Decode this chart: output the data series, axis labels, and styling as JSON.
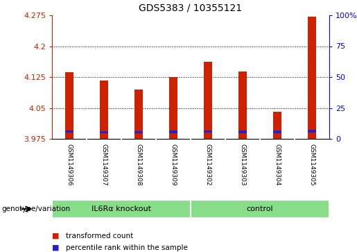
{
  "title": "GDS5383 / 10355121",
  "samples": [
    "GSM1149306",
    "GSM1149307",
    "GSM1149308",
    "GSM1149309",
    "GSM1149302",
    "GSM1149303",
    "GSM1149304",
    "GSM1149305"
  ],
  "transformed_counts": [
    4.137,
    4.117,
    4.095,
    4.125,
    4.162,
    4.138,
    4.04,
    4.272
  ],
  "blue_bottoms": [
    3.99,
    3.988,
    3.988,
    3.989,
    3.99,
    3.989,
    3.989,
    3.991
  ],
  "blue_heights": [
    0.006,
    0.006,
    0.006,
    0.006,
    0.006,
    0.006,
    0.006,
    0.006
  ],
  "bar_bottom": 3.975,
  "ylim_left": [
    3.975,
    4.275
  ],
  "ylim_right": [
    0,
    100
  ],
  "yticks_left": [
    3.975,
    4.05,
    4.125,
    4.2,
    4.275
  ],
  "ytick_labels_left": [
    "3.975",
    "4.05",
    "4.125",
    "4.2",
    "4.275"
  ],
  "yticks_right": [
    0,
    25,
    50,
    75,
    100
  ],
  "ytick_labels_right": [
    "0",
    "25",
    "50",
    "75",
    "100%"
  ],
  "group1_label": "IL6Rα knockout",
  "group2_label": "control",
  "group1_count": 4,
  "group2_count": 4,
  "bar_color": "#cc2200",
  "percentile_color": "#2222cc",
  "group_bg_color": "#88dd88",
  "tick_bg_color": "#c8c8c8",
  "genotype_label": "genotype/variation",
  "legend_red_label": "transformed count",
  "legend_blue_label": "percentile rank within the sample",
  "bar_width": 0.25
}
